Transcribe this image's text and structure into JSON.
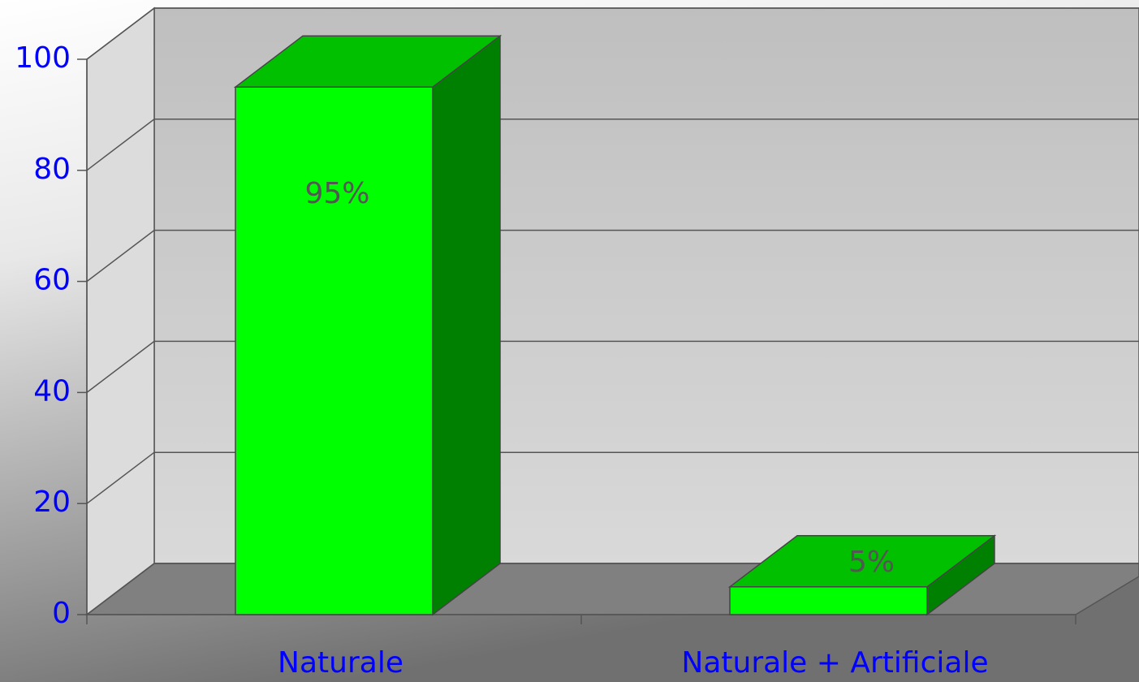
{
  "chart_data": {
    "type": "bar3d",
    "categories": [
      "Naturale",
      "Naturale + Artificiale"
    ],
    "values": [
      95,
      5
    ],
    "value_labels": [
      "95%",
      "5%"
    ],
    "color": "#00ff00",
    "ylim": [
      0,
      100
    ],
    "yticks": [
      0,
      20,
      40,
      60,
      80,
      100
    ],
    "grid": true
  }
}
